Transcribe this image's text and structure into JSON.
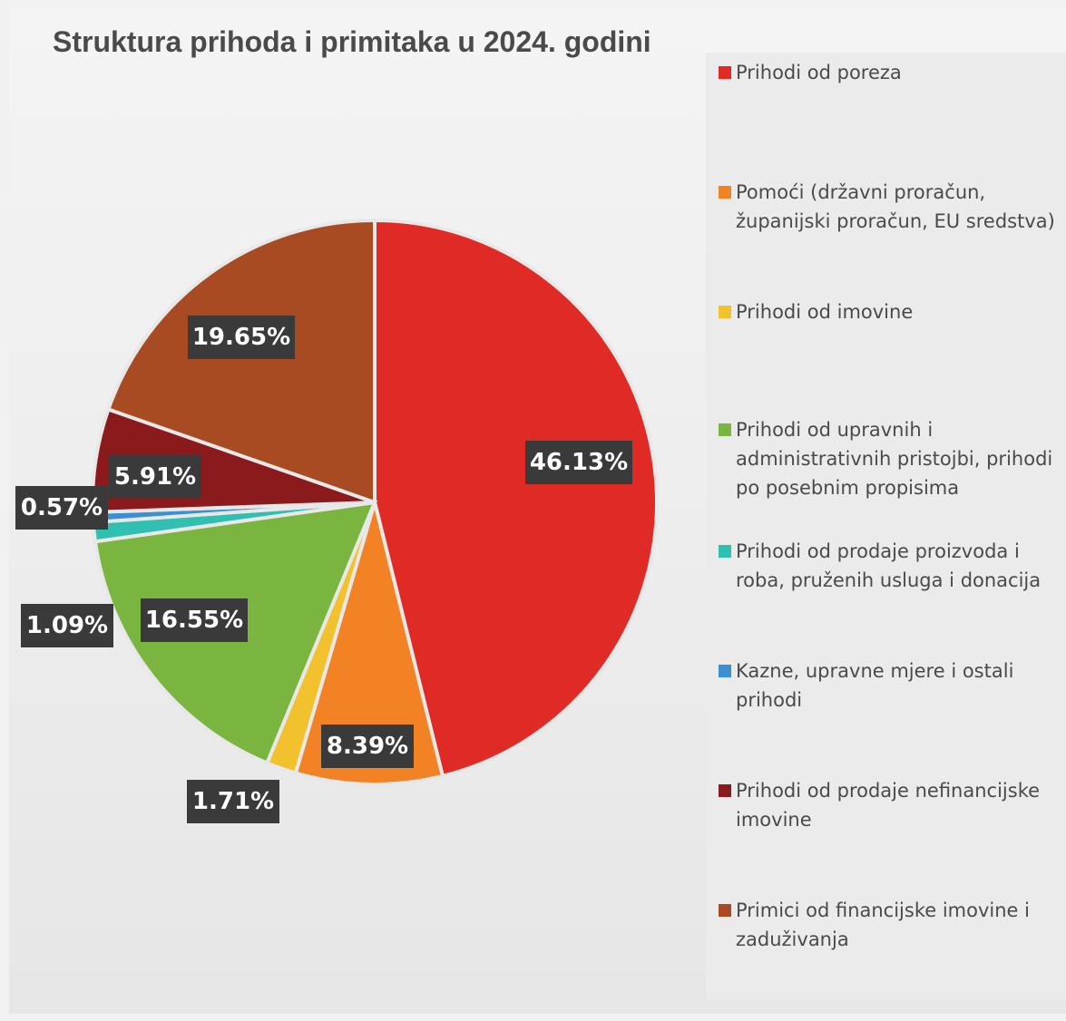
{
  "chart_data": {
    "type": "pie",
    "title": "Struktura prihoda i primitaka u 2024. godini",
    "categories": [
      "Prihodi od poreza",
      "Pomoći (državni proračun,\nžupanijski proračun, EU sredstva)",
      "Prihodi od imovine",
      "Prihodi od upravnih i\nadministrativnih pristojbi, prihodi\npo posebnim propisima",
      "Prihodi od prodaje proizvoda i\nroba, pruženih usluga i donacija",
      "Kazne, upravne mjere i ostali\nprihodi",
      "Prihodi od prodaje nefinancijske\nimovine",
      "Primici od financijske imovine i\nzaduživanja"
    ],
    "values": [
      46.13,
      8.39,
      1.71,
      16.55,
      1.09,
      0.57,
      5.91,
      19.65
    ],
    "data_labels": [
      "46.13%",
      "8.39%",
      "1.71%",
      "16.55%",
      "1.09%",
      "0.57%",
      "5.91%",
      "19.65%"
    ],
    "colors": [
      "#e02a25",
      "#f28224",
      "#f2c12e",
      "#7ab53f",
      "#30bfb0",
      "#3b8fd3",
      "#8b1a1c",
      "#a84a22"
    ],
    "legend_position": "right",
    "start_angle_deg": 0,
    "direction": "clockwise"
  }
}
